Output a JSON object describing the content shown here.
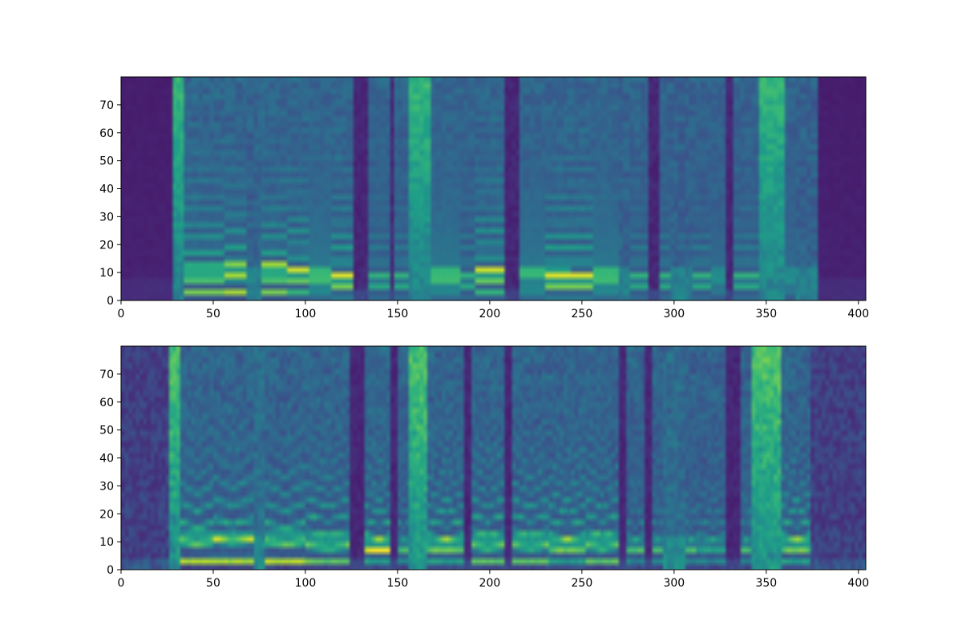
{
  "chart_data": [
    {
      "type": "heatmap",
      "title": "",
      "xlabel": "",
      "ylabel": "",
      "xlim": [
        0,
        404
      ],
      "ylim": [
        0,
        80
      ],
      "x_ticks": [
        0,
        50,
        100,
        150,
        200,
        250,
        300,
        350,
        400
      ],
      "y_ticks": [
        0,
        10,
        20,
        30,
        40,
        50,
        60,
        70
      ],
      "colormap": "viridis",
      "grid": false,
      "legend": "none",
      "description_values": {
        "n_frames": 404,
        "n_mel_bins": 80,
        "padding_frames": [
          [
            0,
            29
          ],
          [
            378,
            404
          ]
        ]
      },
      "segments": [
        [
          0,
          29,
          "pad"
        ],
        [
          29,
          34,
          "fric"
        ],
        [
          34,
          45,
          "voiced",
          10.5,
          5.0
        ],
        [
          45,
          57,
          "voiced",
          10.5,
          5.0
        ],
        [
          57,
          68,
          "voiced",
          11.0,
          5.5
        ],
        [
          68,
          76,
          "weak"
        ],
        [
          76,
          90,
          "voiced",
          11.0,
          5.0
        ],
        [
          90,
          102,
          "voiced",
          10.0,
          4.5
        ],
        [
          102,
          114,
          "voiced",
          9.0,
          4.0
        ],
        [
          114,
          127,
          "voiced",
          8.0,
          3.5
        ],
        [
          127,
          134,
          "sil"
        ],
        [
          134,
          146,
          "voicedw",
          8.0,
          3.5
        ],
        [
          146,
          148,
          "sil"
        ],
        [
          148,
          156,
          "voicedw",
          8.0,
          3.5
        ],
        [
          156,
          168,
          "fric"
        ],
        [
          168,
          184,
          "voiced",
          9.0,
          4.0
        ],
        [
          184,
          193,
          "voicedw",
          8.0,
          3.5
        ],
        [
          193,
          209,
          "voiced",
          10.0,
          4.5
        ],
        [
          209,
          216,
          "sil"
        ],
        [
          216,
          230,
          "voiced",
          10.0,
          4.0
        ],
        [
          230,
          244,
          "voiced",
          9.0,
          3.5
        ],
        [
          244,
          256,
          "voiced",
          8.5,
          3.5
        ],
        [
          256,
          270,
          "voiced",
          9.0,
          4.0
        ],
        [
          270,
          276,
          "weak"
        ],
        [
          276,
          287,
          "voicedw",
          8.0,
          3.5
        ],
        [
          287,
          292,
          "sil"
        ],
        [
          292,
          298,
          "voicedw",
          8.0,
          3.5
        ],
        [
          298,
          311,
          "weak"
        ],
        [
          311,
          320,
          "voicedw",
          8.0,
          3.5
        ],
        [
          320,
          328,
          "voicedw",
          9.0,
          4.0
        ],
        [
          328,
          333,
          "sil"
        ],
        [
          333,
          347,
          "voicedw",
          8.0,
          3.5
        ],
        [
          347,
          361,
          "fric"
        ],
        [
          361,
          367,
          "voicedw",
          9.0,
          4.0
        ],
        [
          367,
          378,
          "weak"
        ],
        [
          378,
          404,
          "pad"
        ]
      ]
    },
    {
      "type": "heatmap",
      "title": "",
      "xlabel": "",
      "ylabel": "",
      "xlim": [
        0,
        404
      ],
      "ylim": [
        0,
        80
      ],
      "x_ticks": [
        0,
        50,
        100,
        150,
        200,
        250,
        300,
        350,
        400
      ],
      "y_ticks": [
        0,
        10,
        20,
        30,
        40,
        50,
        60,
        70
      ],
      "colormap": "viridis",
      "grid": false,
      "legend": "none",
      "segments": [
        [
          0,
          27,
          "noise"
        ],
        [
          27,
          33,
          "fric"
        ],
        [
          33,
          50,
          "voiced",
          12.0,
          6.0
        ],
        [
          50,
          72,
          "voiced",
          12.5,
          6.5
        ],
        [
          72,
          78,
          "weak"
        ],
        [
          78,
          100,
          "voiced",
          11.5,
          6.0
        ],
        [
          100,
          125,
          "voiced",
          10.0,
          5.0
        ],
        [
          125,
          133,
          "sil"
        ],
        [
          133,
          147,
          "voiced",
          9.0,
          4.5
        ],
        [
          147,
          150,
          "sil"
        ],
        [
          150,
          157,
          "voicedw",
          9.0,
          4.5
        ],
        [
          157,
          166,
          "fric"
        ],
        [
          166,
          187,
          "voiced",
          9.5,
          4.5
        ],
        [
          187,
          190,
          "sil"
        ],
        [
          190,
          208,
          "voiced",
          10.5,
          5.0
        ],
        [
          208,
          212,
          "sil"
        ],
        [
          212,
          232,
          "voiced",
          10.5,
          5.0
        ],
        [
          232,
          252,
          "voiced",
          9.5,
          4.5
        ],
        [
          252,
          270,
          "voiced",
          10.0,
          5.0
        ],
        [
          270,
          274,
          "sil"
        ],
        [
          274,
          284,
          "voicedw",
          9.0,
          4.5
        ],
        [
          284,
          288,
          "sil"
        ],
        [
          288,
          295,
          "voicedw",
          9.0,
          4.5
        ],
        [
          295,
          306,
          "weak"
        ],
        [
          306,
          313,
          "voicedw",
          9.0,
          4.5
        ],
        [
          313,
          329,
          "voicedw",
          9.5,
          4.5
        ],
        [
          329,
          336,
          "sil"
        ],
        [
          336,
          343,
          "voicedw",
          9.0,
          4.5
        ],
        [
          343,
          358,
          "fric"
        ],
        [
          358,
          375,
          "voiced",
          9.5,
          4.5
        ],
        [
          375,
          404,
          "noise"
        ]
      ]
    }
  ]
}
